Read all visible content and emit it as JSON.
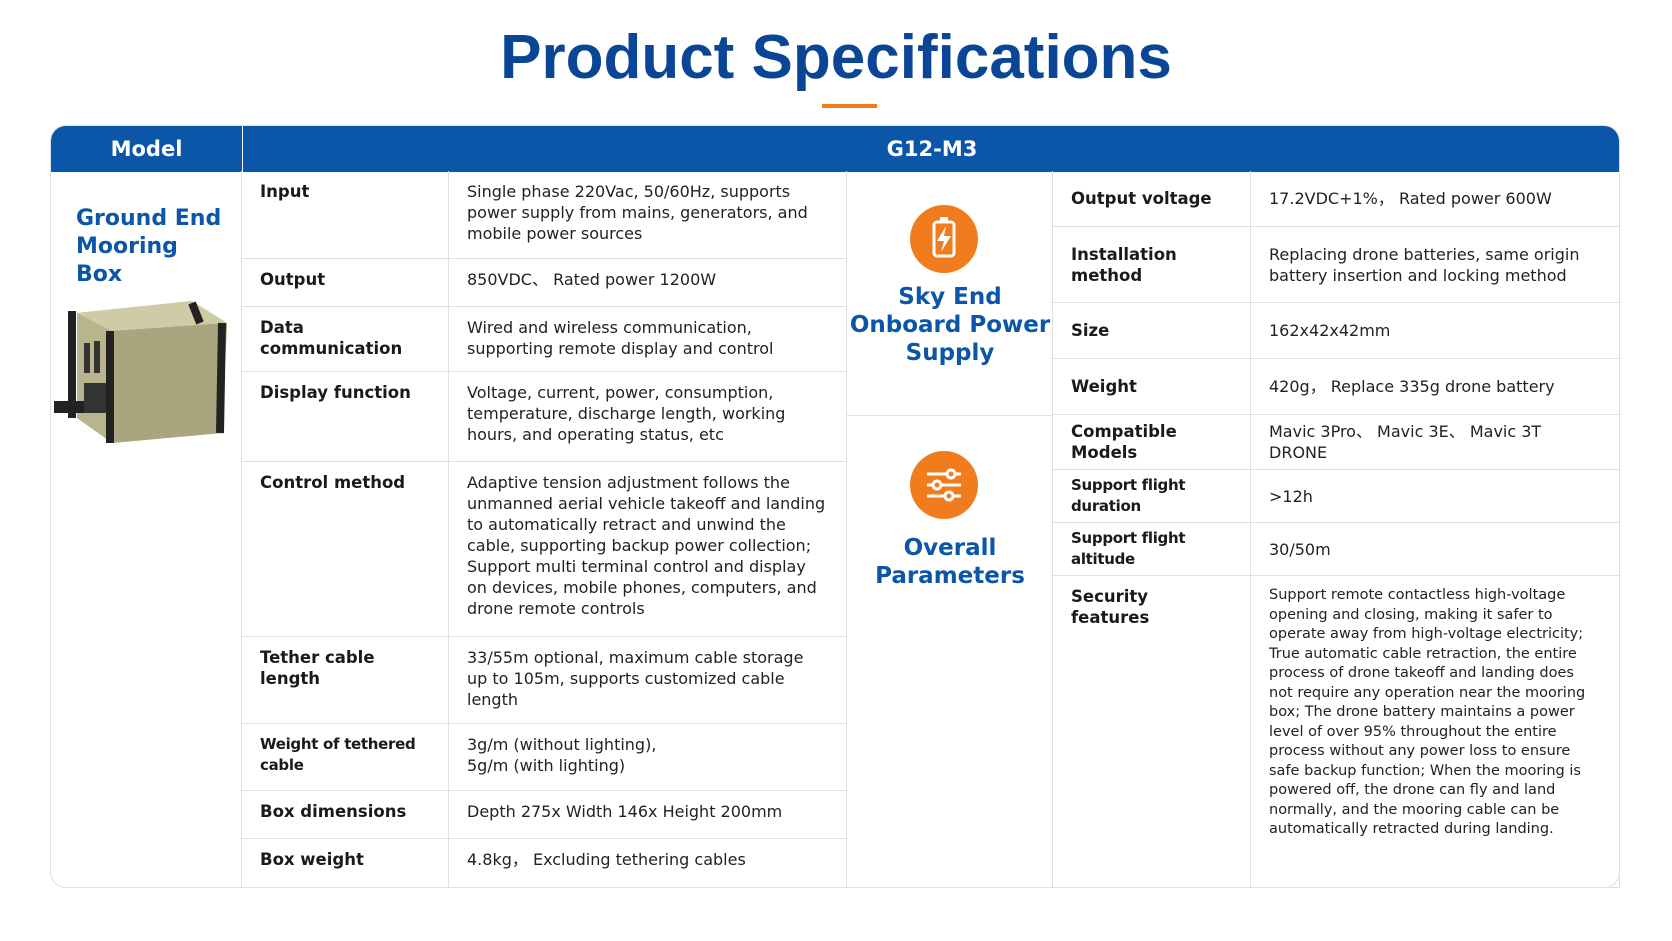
{
  "header": {
    "title": "Product Specifications"
  },
  "table": {
    "model_label": "Model",
    "model": "G12-M3",
    "ground": {
      "label": "Ground End Mooring Box",
      "rows": [
        [
          "Input",
          "Single phase 220Vac, 50/60Hz, supports power supply from mains, generators, and mobile power sources"
        ],
        [
          "Output",
          "850VDC、 Rated power 1200W"
        ],
        [
          "Data communication",
          "Wired and wireless communication, supporting remote display and control"
        ],
        [
          "Display function",
          "Voltage, current, power, consumption, temperature, discharge length, working hours, and operating status, etc"
        ],
        [
          "Control method",
          "Adaptive tension adjustment follows the unmanned aerial vehicle takeoff and landing to automatically retract and unwind the cable, supporting backup power collection; Support multi terminal control and display on devices, mobile phones, computers, and drone remote controls"
        ],
        [
          "Tether cable length",
          "33/55m optional, maximum cable storage up to 105m, supports customized cable length"
        ],
        [
          "Weight of tethered cable",
          "3g/m (without lighting),\n5g/m (with lighting)"
        ],
        [
          "Box dimensions",
          "Depth 275x Width 146x Height 200mm"
        ],
        [
          "Box weight",
          "4.8kg， Excluding tethering cables"
        ]
      ]
    },
    "sky": {
      "label": "Sky End Onboard Power Supply",
      "rows": [
        [
          "Output voltage",
          "17.2VDC+1%， Rated power 600W"
        ],
        [
          "Installation method",
          "Replacing drone batteries, same origin battery insertion and locking method"
        ],
        [
          "Size",
          "162x42x42mm"
        ],
        [
          "Weight",
          "420g， Replace 335g drone battery"
        ]
      ]
    },
    "overall": {
      "label": "Overall Parameters",
      "rows": [
        [
          "Compatible Models",
          "Mavic 3Pro、 Mavic 3E、 Mavic 3T DRONE"
        ],
        [
          "Support flight duration",
          ">12h"
        ],
        [
          "Support flight altitude",
          "30/50m"
        ],
        [
          "Security features",
          "Support remote contactless high-voltage opening and closing, making it safer to operate away from high-voltage electricity; True automatic cable retraction, the entire process of drone takeoff and landing does not require any operation near the mooring box; The drone battery maintains a power level of over 95% throughout the entire process without any power loss to ensure safe backup function; When the mooring is powered off, the drone can fly and land normally, and the mooring cable can be automatically retracted during landing."
        ]
      ]
    }
  }
}
